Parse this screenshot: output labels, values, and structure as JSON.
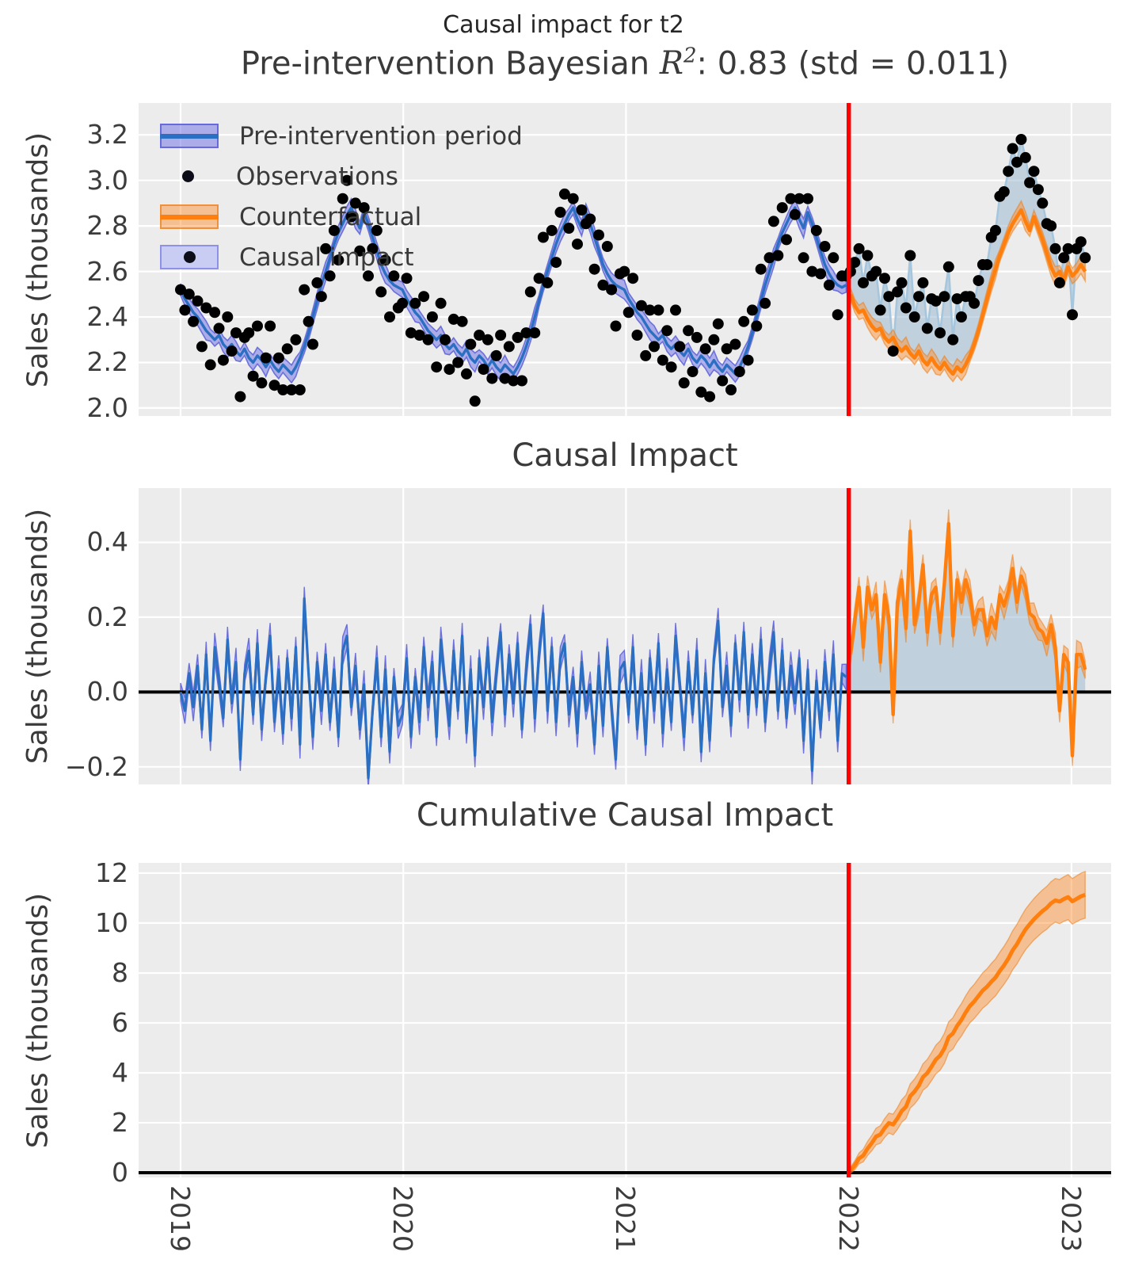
{
  "chart_data": {
    "type": "line",
    "suptitle": "Causal impact for t2",
    "intervention_x": 2022,
    "x": {
      "start": 2019,
      "samples_per_year": 52.2,
      "ticks": [
        2019,
        2020,
        2021,
        2022,
        2023
      ],
      "tick_labels": [
        "2019",
        "2020",
        "2021",
        "2022",
        "2023"
      ],
      "xlim": [
        2018.8116,
        2023.178
      ]
    },
    "panels": [
      {
        "name": "fit",
        "title_prefix": "Pre-intervention Bayesian ",
        "title_math": "R",
        "title_sup": "2",
        "title_suffix": ": 0.83 (std = 0.011)",
        "ylabel": "Sales (thousands)",
        "ytick_vals": [
          3.2,
          3.0,
          2.8,
          2.6,
          2.4,
          2.2,
          2.0
        ],
        "ytick_labels": [
          "3.2",
          "3.0",
          "2.8",
          "2.6",
          "2.4",
          "2.2",
          "2.0"
        ],
        "ylim": [
          1.965,
          3.34
        ],
        "legend": [
          {
            "label": "Pre-intervention period",
            "swatch": "blue-band"
          },
          {
            "label": "Observations",
            "swatch": "dot"
          },
          {
            "label": "Counterfactual",
            "swatch": "orange-band"
          },
          {
            "label": "Causal impact",
            "swatch": "lightblue-patch"
          }
        ]
      },
      {
        "name": "impact",
        "title": "Causal Impact",
        "ylabel": "Sales (thousands)",
        "ytick_vals": [
          0.4,
          0.2,
          0.0,
          -0.2
        ],
        "ytick_labels": [
          "0.4",
          "0.2",
          "0.0",
          "−0.2"
        ],
        "ylim": [
          -0.247,
          0.545
        ]
      },
      {
        "name": "cumulative",
        "title": "Cumulative Causal Impact",
        "ylabel": "Sales (thousands)",
        "ytick_vals": [
          12,
          10,
          8,
          6,
          4,
          2,
          0
        ],
        "ytick_labels": [
          "12",
          "10",
          "8",
          "6",
          "4",
          "2",
          "0"
        ],
        "ylim": [
          -0.19,
          12.41
        ]
      }
    ],
    "series": {
      "fit_pre": [
        2.52,
        2.48,
        2.45,
        2.42,
        2.4,
        2.37,
        2.34,
        2.32,
        2.3,
        2.32,
        2.28,
        2.26,
        2.28,
        2.25,
        2.23,
        2.26,
        2.22,
        2.2,
        2.23,
        2.21,
        2.18,
        2.21,
        2.18,
        2.16,
        2.19,
        2.17,
        2.15,
        2.18,
        2.22,
        2.27,
        2.33,
        2.4,
        2.47,
        2.54,
        2.6,
        2.66,
        2.72,
        2.77,
        2.81,
        2.85,
        2.88,
        2.83,
        2.79,
        2.86,
        2.81,
        2.75,
        2.69,
        2.63,
        2.59,
        2.56,
        2.54,
        2.53,
        2.52,
        2.48,
        2.45,
        2.42,
        2.4,
        2.37,
        2.34,
        2.32,
        2.3,
        2.32,
        2.28,
        2.26,
        2.28,
        2.25,
        2.23,
        2.26,
        2.22,
        2.2,
        2.23,
        2.21,
        2.18,
        2.21,
        2.18,
        2.16,
        2.19,
        2.17,
        2.15,
        2.18,
        2.22,
        2.27,
        2.33,
        2.4,
        2.47,
        2.54,
        2.6,
        2.66,
        2.72,
        2.77,
        2.81,
        2.85,
        2.88,
        2.83,
        2.79,
        2.86,
        2.81,
        2.75,
        2.69,
        2.63,
        2.59,
        2.56,
        2.54,
        2.53,
        2.52,
        2.48,
        2.45,
        2.42,
        2.4,
        2.37,
        2.34,
        2.32,
        2.3,
        2.32,
        2.28,
        2.26,
        2.28,
        2.25,
        2.23,
        2.26,
        2.22,
        2.2,
        2.23,
        2.21,
        2.18,
        2.21,
        2.18,
        2.16,
        2.19,
        2.17,
        2.15,
        2.18,
        2.22,
        2.27,
        2.33,
        2.4,
        2.47,
        2.54,
        2.6,
        2.66,
        2.72,
        2.77,
        2.81,
        2.85,
        2.88,
        2.83,
        2.79,
        2.86,
        2.81,
        2.75,
        2.69,
        2.63,
        2.59,
        2.56,
        2.54,
        2.53,
        2.54
      ],
      "obs_pre": [
        2.52,
        2.43,
        2.5,
        2.38,
        2.47,
        2.27,
        2.44,
        2.19,
        2.42,
        2.35,
        2.21,
        2.4,
        2.25,
        2.33,
        2.05,
        2.31,
        2.33,
        2.14,
        2.36,
        2.11,
        2.22,
        2.36,
        2.1,
        2.22,
        2.08,
        2.26,
        2.08,
        2.3,
        2.08,
        2.52,
        2.38,
        2.28,
        2.55,
        2.49,
        2.7,
        2.58,
        2.78,
        2.65,
        2.92,
        3.0,
        2.84,
        2.9,
        2.69,
        2.88,
        2.58,
        2.7,
        2.78,
        2.51,
        2.65,
        2.4,
        2.58,
        2.44,
        2.46,
        2.57,
        2.33,
        2.46,
        2.32,
        2.49,
        2.3,
        2.4,
        2.18,
        2.46,
        2.3,
        2.17,
        2.39,
        2.2,
        2.38,
        2.15,
        2.28,
        2.03,
        2.32,
        2.17,
        2.3,
        2.13,
        2.23,
        2.32,
        2.13,
        2.27,
        2.12,
        2.31,
        2.12,
        2.33,
        2.51,
        2.33,
        2.57,
        2.75,
        2.55,
        2.78,
        2.64,
        2.86,
        2.94,
        2.79,
        2.92,
        2.72,
        2.87,
        2.81,
        2.83,
        2.61,
        2.76,
        2.54,
        2.71,
        2.52,
        2.36,
        2.59,
        2.6,
        2.42,
        2.57,
        2.32,
        2.45,
        2.23,
        2.43,
        2.27,
        2.43,
        2.21,
        2.34,
        2.18,
        2.43,
        2.27,
        2.11,
        2.34,
        2.16,
        2.31,
        2.07,
        2.26,
        2.05,
        2.3,
        2.37,
        2.12,
        2.26,
        2.08,
        2.28,
        2.16,
        2.38,
        2.21,
        2.43,
        2.36,
        2.61,
        2.46,
        2.66,
        2.82,
        2.67,
        2.88,
        2.74,
        2.92,
        2.85,
        2.92,
        2.66,
        2.92,
        2.6,
        2.78,
        2.59,
        2.71,
        2.54,
        2.66,
        2.41,
        2.58,
        2.58
      ],
      "counterfactual_post": [
        2.5,
        2.45,
        2.42,
        2.43,
        2.39,
        2.36,
        2.34,
        2.35,
        2.31,
        2.29,
        2.31,
        2.27,
        2.25,
        2.27,
        2.24,
        2.22,
        2.25,
        2.21,
        2.19,
        2.22,
        2.19,
        2.17,
        2.2,
        2.17,
        2.15,
        2.18,
        2.16,
        2.19,
        2.23,
        2.28,
        2.34,
        2.41,
        2.48,
        2.55,
        2.61,
        2.67,
        2.72,
        2.77,
        2.81,
        2.84,
        2.87,
        2.82,
        2.78,
        2.84,
        2.79,
        2.74,
        2.68,
        2.62,
        2.58,
        2.6,
        2.56,
        2.62,
        2.58,
        2.6,
        2.63,
        2.6
      ],
      "obs_post": [
        2.6,
        2.64,
        2.7,
        2.55,
        2.67,
        2.58,
        2.6,
        2.43,
        2.57,
        2.49,
        2.25,
        2.51,
        2.55,
        2.44,
        2.67,
        2.4,
        2.49,
        2.55,
        2.35,
        2.48,
        2.47,
        2.33,
        2.49,
        2.62,
        2.3,
        2.48,
        2.4,
        2.49,
        2.49,
        2.46,
        2.56,
        2.63,
        2.63,
        2.75,
        2.78,
        2.93,
        2.95,
        3.04,
        3.14,
        3.08,
        3.18,
        3.1,
        2.99,
        3.04,
        2.96,
        2.9,
        2.81,
        2.8,
        2.7,
        2.55,
        2.66,
        2.7,
        2.41,
        2.7,
        2.73,
        2.66
      ],
      "fit_band_halfwidth": 0.035,
      "impact_band_halfwidth": 0.033,
      "cumulative_band_coeff": 0.125
    },
    "colors": {
      "panel_bg": "#ececec",
      "grid": "#ffffff",
      "blue_line": "#2b6fc2",
      "blue_band": "rgba(105,108,228,0.5)",
      "blue_band_edge": "rgba(85,90,215,0.8)",
      "orange_line": "#ff7f0e",
      "orange_band": "rgba(255,140,40,0.45)",
      "orange_band_edge": "rgba(235,125,25,0.55)",
      "impact_fill": "rgba(148,180,205,0.5)",
      "obs_post_line": "#a6c6dd",
      "observation": "#000000",
      "intervention_line": "#ff0000",
      "zero_line": "#000000",
      "text": "#3a3a3a"
    }
  }
}
